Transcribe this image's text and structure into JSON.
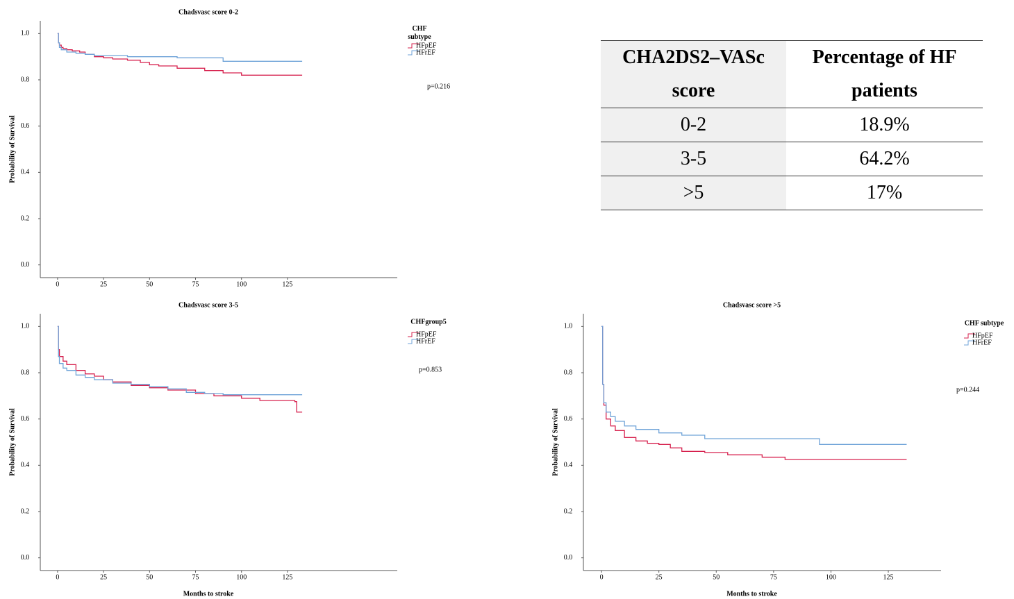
{
  "chart_data": [
    {
      "type": "step",
      "title": "Chadsvasc score 0-2",
      "y_label": "Probability of Survival",
      "legend_title": "CHF subtype",
      "annotation": "p=0.216",
      "xlim": [
        -9.4,
        184.7
      ],
      "ylim": [
        -0.055,
        1.055
      ],
      "xticks": [
        0,
        25,
        50,
        75,
        100,
        125
      ],
      "yticks": [
        {
          "value": 0,
          "label": "0.0"
        },
        0.2,
        0.4,
        0.6,
        0.8,
        {
          "value": 1,
          "label": "1.0"
        }
      ],
      "series": [
        {
          "name": "HFpEF",
          "color": "#d6204d",
          "x": [
            0,
            0.5,
            1,
            2,
            3,
            5,
            8,
            12,
            15,
            20,
            25,
            30,
            38,
            45,
            50,
            55,
            65,
            80,
            90,
            100,
            133
          ],
          "values": [
            1.0,
            0.96,
            0.95,
            0.94,
            0.935,
            0.93,
            0.925,
            0.92,
            0.91,
            0.9,
            0.895,
            0.89,
            0.885,
            0.875,
            0.865,
            0.86,
            0.85,
            0.84,
            0.83,
            0.82,
            0.82
          ]
        },
        {
          "name": "HFrEF",
          "color": "#6fa3d8",
          "x": [
            0,
            0.5,
            1,
            2,
            5,
            10,
            15,
            20,
            38,
            65,
            90,
            133
          ],
          "values": [
            1.0,
            0.96,
            0.94,
            0.93,
            0.92,
            0.915,
            0.91,
            0.905,
            0.9,
            0.895,
            0.88,
            0.88
          ]
        }
      ]
    },
    {
      "type": "step",
      "title": "Chadsvasc score 3-5",
      "x_label": "Months to stroke",
      "y_label": "Probability of Survival",
      "legend_title": "CHFgroup5",
      "annotation": "p=0.853",
      "xlim": [
        -9.4,
        184.7
      ],
      "ylim": [
        -0.055,
        1.055
      ],
      "xticks": [
        0,
        25,
        50,
        75,
        100,
        125
      ],
      "yticks": [
        {
          "value": 0,
          "label": "0.0"
        },
        0.2,
        0.4,
        0.6,
        0.8,
        {
          "value": 1,
          "label": "1.0"
        }
      ],
      "series": [
        {
          "name": "HFpEF",
          "color": "#d6204d",
          "x": [
            0,
            0.5,
            1,
            3,
            5,
            10,
            15,
            20,
            25,
            30,
            40,
            50,
            60,
            75,
            85,
            100,
            110,
            129,
            130,
            133
          ],
          "values": [
            1.0,
            0.9,
            0.87,
            0.85,
            0.835,
            0.81,
            0.795,
            0.785,
            0.77,
            0.76,
            0.745,
            0.735,
            0.725,
            0.71,
            0.7,
            0.69,
            0.68,
            0.675,
            0.63,
            0.63
          ]
        },
        {
          "name": "HFrEF",
          "color": "#6fa3d8",
          "x": [
            0,
            0.5,
            1,
            3,
            5,
            10,
            15,
            20,
            30,
            40,
            50,
            60,
            70,
            80,
            90,
            133
          ],
          "values": [
            1.0,
            0.87,
            0.84,
            0.82,
            0.81,
            0.79,
            0.78,
            0.77,
            0.755,
            0.75,
            0.74,
            0.73,
            0.715,
            0.71,
            0.705,
            0.705
          ]
        }
      ]
    },
    {
      "type": "step",
      "title": "Chadsvasc score >5",
      "x_label": "Months to stroke",
      "y_label": "Probability of Survival",
      "legend_title": "CHF subtype",
      "annotation": "p=0.244",
      "xlim": [
        -7.9,
        148
      ],
      "ylim": [
        -0.055,
        1.055
      ],
      "xticks": [
        0,
        25,
        50,
        75,
        100,
        125
      ],
      "yticks": [
        {
          "value": 0,
          "label": "0.0"
        },
        0.2,
        0.4,
        0.6,
        0.8,
        {
          "value": 1,
          "label": "1.0"
        }
      ],
      "series": [
        {
          "name": "HFpEF",
          "color": "#d6204d",
          "x": [
            0,
            0.5,
            1,
            2,
            4,
            6,
            10,
            15,
            20,
            25,
            30,
            35,
            45,
            55,
            70,
            80,
            133
          ],
          "values": [
            1.0,
            0.75,
            0.66,
            0.6,
            0.57,
            0.55,
            0.52,
            0.505,
            0.495,
            0.49,
            0.475,
            0.46,
            0.455,
            0.445,
            0.435,
            0.425,
            0.425
          ]
        },
        {
          "name": "HFrEF",
          "color": "#6fa3d8",
          "x": [
            0,
            0.5,
            1,
            2,
            4,
            6,
            10,
            15,
            25,
            35,
            45,
            94,
            95,
            133
          ],
          "values": [
            1.0,
            0.75,
            0.67,
            0.63,
            0.61,
            0.59,
            0.57,
            0.555,
            0.54,
            0.53,
            0.515,
            0.515,
            0.49,
            0.49
          ]
        }
      ]
    }
  ],
  "table": {
    "header": [
      "CHA2DS2–VASc score",
      "Percentage of HF patients"
    ],
    "rows": [
      [
        "0-2",
        "18.9%"
      ],
      [
        "3-5",
        "64.2%"
      ],
      [
        ">5",
        "17%"
      ]
    ]
  }
}
